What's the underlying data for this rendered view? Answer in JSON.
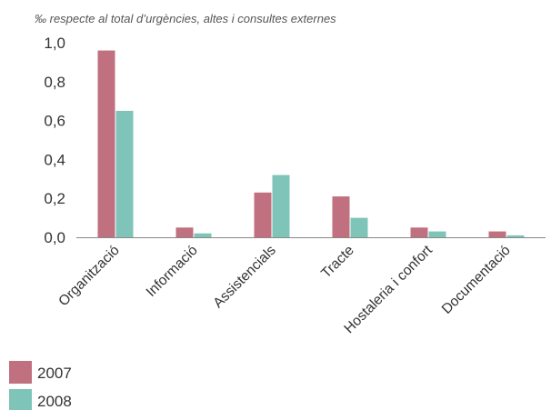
{
  "chart_data": {
    "type": "bar",
    "title": "",
    "ylabel": "‰ respecte al total d’urgències, altes i consultes externes",
    "xlabel": "",
    "ylim": [
      0,
      1.0
    ],
    "yticks": [
      0.0,
      0.2,
      0.4,
      0.6,
      0.8,
      1.0
    ],
    "ytick_labels": [
      "0,0",
      "0,2",
      "0,4",
      "0,6",
      "0,8",
      "1,0"
    ],
    "grid": false,
    "legend_position": "bottom-left",
    "categories": [
      "Organització",
      "Informació",
      "Assistencials",
      "Tracte",
      "Hostaleria i confort",
      "Documentació"
    ],
    "series": [
      {
        "name": "2007",
        "color": "#c0707f",
        "values": [
          0.96,
          0.05,
          0.23,
          0.21,
          0.05,
          0.03
        ]
      },
      {
        "name": "2008",
        "color": "#7fc4b8",
        "values": [
          0.65,
          0.02,
          0.32,
          0.1,
          0.03,
          0.01
        ]
      }
    ]
  }
}
